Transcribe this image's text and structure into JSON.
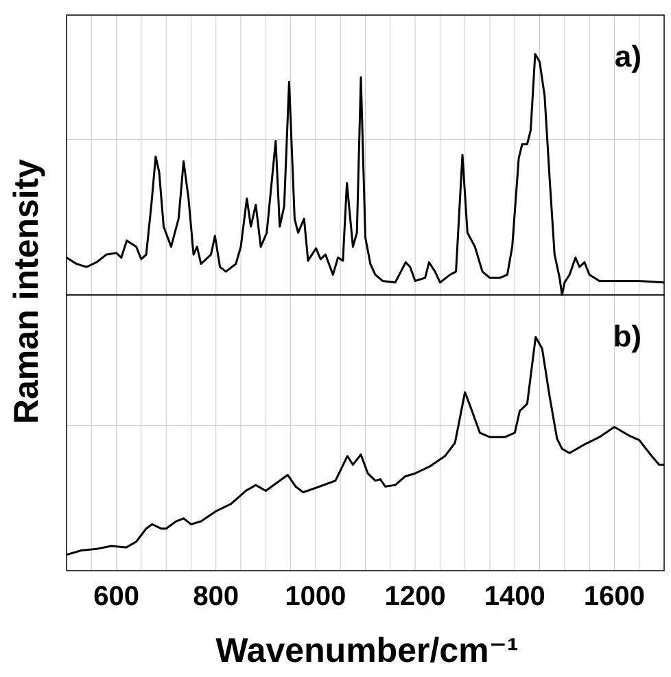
{
  "chart_data": [
    {
      "type": "line",
      "annotation": "a)",
      "ylabel": "Raman intensity",
      "grid": true,
      "xlim": [
        500,
        1700
      ],
      "ylim": [
        0,
        1.8
      ],
      "yticks": [
        1
      ],
      "xgrid": [
        550,
        600,
        650,
        700,
        750,
        800,
        850,
        900,
        950,
        1000,
        1050,
        1100,
        1150,
        1200,
        1250,
        1300,
        1350,
        1400,
        1450,
        1500,
        1550,
        1600,
        1650
      ],
      "color": "#000000",
      "x": [
        500,
        520,
        540,
        560,
        580,
        600,
        610,
        621,
        640,
        650,
        660,
        670,
        679,
        686,
        695,
        710,
        725,
        735,
        745,
        755,
        762,
        770,
        790,
        798,
        808,
        820,
        840,
        850,
        862,
        870,
        880,
        890,
        902,
        920,
        928,
        937,
        947,
        958,
        965,
        977,
        985,
        1001,
        1010,
        1020,
        1035,
        1045,
        1055,
        1063,
        1075,
        1083,
        1091,
        1100,
        1110,
        1120,
        1135,
        1160,
        1181,
        1190,
        1200,
        1220,
        1228,
        1240,
        1250,
        1270,
        1282,
        1295,
        1305,
        1320,
        1335,
        1350,
        1370,
        1385,
        1395,
        1408,
        1415,
        1425,
        1432,
        1441,
        1450,
        1460,
        1470,
        1480,
        1490,
        1495,
        1500,
        1510,
        1522,
        1530,
        1540,
        1550,
        1570,
        1600,
        1650,
        1700
      ],
      "values": [
        0.24,
        0.2,
        0.18,
        0.21,
        0.26,
        0.27,
        0.24,
        0.35,
        0.31,
        0.23,
        0.26,
        0.57,
        0.89,
        0.79,
        0.44,
        0.31,
        0.49,
        0.86,
        0.62,
        0.26,
        0.31,
        0.2,
        0.26,
        0.38,
        0.18,
        0.15,
        0.2,
        0.31,
        0.62,
        0.44,
        0.58,
        0.31,
        0.4,
        0.99,
        0.44,
        0.57,
        1.37,
        0.49,
        0.4,
        0.49,
        0.22,
        0.3,
        0.23,
        0.26,
        0.13,
        0.24,
        0.22,
        0.72,
        0.31,
        0.4,
        1.4,
        0.37,
        0.2,
        0.13,
        0.09,
        0.08,
        0.21,
        0.18,
        0.09,
        0.11,
        0.21,
        0.15,
        0.08,
        0.13,
        0.15,
        0.9,
        0.4,
        0.31,
        0.15,
        0.11,
        0.11,
        0.13,
        0.31,
        0.88,
        0.97,
        0.97,
        1.06,
        1.55,
        1.5,
        1.28,
        0.75,
        0.26,
        0.11,
        0.0,
        0.08,
        0.13,
        0.24,
        0.18,
        0.21,
        0.13,
        0.09,
        0.09,
        0.09,
        0.08
      ]
    },
    {
      "type": "line",
      "annotation": "b)",
      "xlabel": "Wavenumber/cm⁻¹",
      "grid": true,
      "xlim": [
        500,
        1700
      ],
      "ylim": [
        0,
        1.9
      ],
      "yticks": [
        1
      ],
      "xticks": [
        600,
        800,
        1000,
        1200,
        1400,
        1600
      ],
      "xgrid": [
        550,
        600,
        650,
        700,
        750,
        800,
        850,
        900,
        950,
        1000,
        1050,
        1100,
        1150,
        1200,
        1250,
        1300,
        1350,
        1400,
        1450,
        1500,
        1550,
        1600,
        1650
      ],
      "color": "#000000",
      "x": [
        500,
        530,
        560,
        590,
        620,
        640,
        660,
        672,
        690,
        700,
        720,
        735,
        750,
        770,
        800,
        830,
        860,
        880,
        900,
        920,
        944,
        960,
        975,
        1000,
        1040,
        1064,
        1075,
        1091,
        1105,
        1120,
        1130,
        1140,
        1160,
        1180,
        1200,
        1230,
        1260,
        1280,
        1300,
        1310,
        1330,
        1350,
        1380,
        1400,
        1410,
        1425,
        1442,
        1455,
        1470,
        1485,
        1495,
        1510,
        1540,
        1570,
        1600,
        1630,
        1650,
        1675,
        1690,
        1700
      ],
      "values": [
        0.11,
        0.14,
        0.15,
        0.17,
        0.16,
        0.2,
        0.29,
        0.32,
        0.29,
        0.29,
        0.34,
        0.36,
        0.32,
        0.34,
        0.41,
        0.46,
        0.55,
        0.59,
        0.55,
        0.6,
        0.66,
        0.58,
        0.54,
        0.57,
        0.62,
        0.79,
        0.73,
        0.8,
        0.67,
        0.62,
        0.63,
        0.58,
        0.59,
        0.65,
        0.67,
        0.72,
        0.79,
        0.88,
        1.23,
        1.14,
        0.95,
        0.92,
        0.92,
        0.95,
        1.1,
        1.15,
        1.61,
        1.53,
        1.2,
        0.91,
        0.84,
        0.81,
        0.87,
        0.92,
        0.99,
        0.93,
        0.9,
        0.79,
        0.73,
        0.73
      ]
    }
  ]
}
